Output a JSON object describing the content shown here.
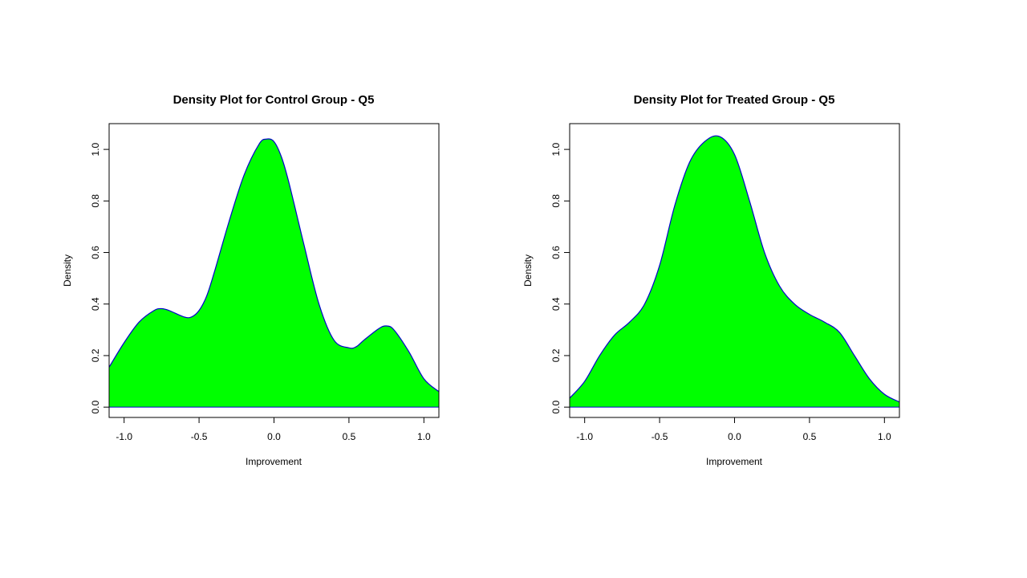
{
  "colors": {
    "fill": "#00ff00",
    "line": "#0000cc",
    "axis": "#000000",
    "background": "#ffffff"
  },
  "chart_data": [
    {
      "type": "area",
      "title": "Density Plot for Control Group - Q5",
      "xlabel": "Improvement",
      "ylabel": "Density",
      "xlim": [
        -1.1,
        1.1
      ],
      "ylim": [
        -0.04,
        1.1
      ],
      "xticks": [
        -1.0,
        -0.5,
        0.0,
        0.5,
        1.0
      ],
      "xtick_labels": [
        "-1.0",
        "-0.5",
        "0.0",
        "0.5",
        "1.0"
      ],
      "yticks": [
        0.0,
        0.2,
        0.4,
        0.6,
        0.8,
        1.0
      ],
      "ytick_labels": [
        "0.0",
        "0.2",
        "0.4",
        "0.6",
        "0.8",
        "1.0"
      ],
      "grid": false,
      "x": [
        -1.1,
        -1.0,
        -0.9,
        -0.8,
        -0.75,
        -0.7,
        -0.6,
        -0.55,
        -0.5,
        -0.45,
        -0.4,
        -0.3,
        -0.2,
        -0.1,
        -0.05,
        0.0,
        0.05,
        0.1,
        0.2,
        0.3,
        0.4,
        0.5,
        0.55,
        0.6,
        0.7,
        0.75,
        0.8,
        0.9,
        1.0,
        1.1
      ],
      "y": [
        0.155,
        0.25,
        0.33,
        0.375,
        0.382,
        0.375,
        0.35,
        0.35,
        0.375,
        0.43,
        0.52,
        0.72,
        0.9,
        1.02,
        1.04,
        1.03,
        0.97,
        0.87,
        0.63,
        0.4,
        0.26,
        0.23,
        0.235,
        0.26,
        0.305,
        0.315,
        0.3,
        0.215,
        0.11,
        0.06
      ]
    },
    {
      "type": "area",
      "title": "Density Plot for Treated Group - Q5",
      "xlabel": "Improvement",
      "ylabel": "Density",
      "xlim": [
        -1.1,
        1.1
      ],
      "ylim": [
        -0.04,
        1.1
      ],
      "xticks": [
        -1.0,
        -0.5,
        0.0,
        0.5,
        1.0
      ],
      "xtick_labels": [
        "-1.0",
        "-0.5",
        "0.0",
        "0.5",
        "1.0"
      ],
      "yticks": [
        0.0,
        0.2,
        0.4,
        0.6,
        0.8,
        1.0
      ],
      "ytick_labels": [
        "0.0",
        "0.2",
        "0.4",
        "0.6",
        "0.8",
        "1.0"
      ],
      "grid": false,
      "x": [
        -1.1,
        -1.0,
        -0.9,
        -0.8,
        -0.7,
        -0.6,
        -0.5,
        -0.4,
        -0.3,
        -0.2,
        -0.1,
        0.0,
        0.1,
        0.2,
        0.3,
        0.4,
        0.5,
        0.6,
        0.7,
        0.8,
        0.9,
        1.0,
        1.1
      ],
      "y": [
        0.035,
        0.1,
        0.2,
        0.28,
        0.33,
        0.4,
        0.55,
        0.78,
        0.95,
        1.03,
        1.05,
        0.98,
        0.8,
        0.6,
        0.47,
        0.4,
        0.36,
        0.33,
        0.29,
        0.2,
        0.11,
        0.05,
        0.02
      ]
    }
  ]
}
